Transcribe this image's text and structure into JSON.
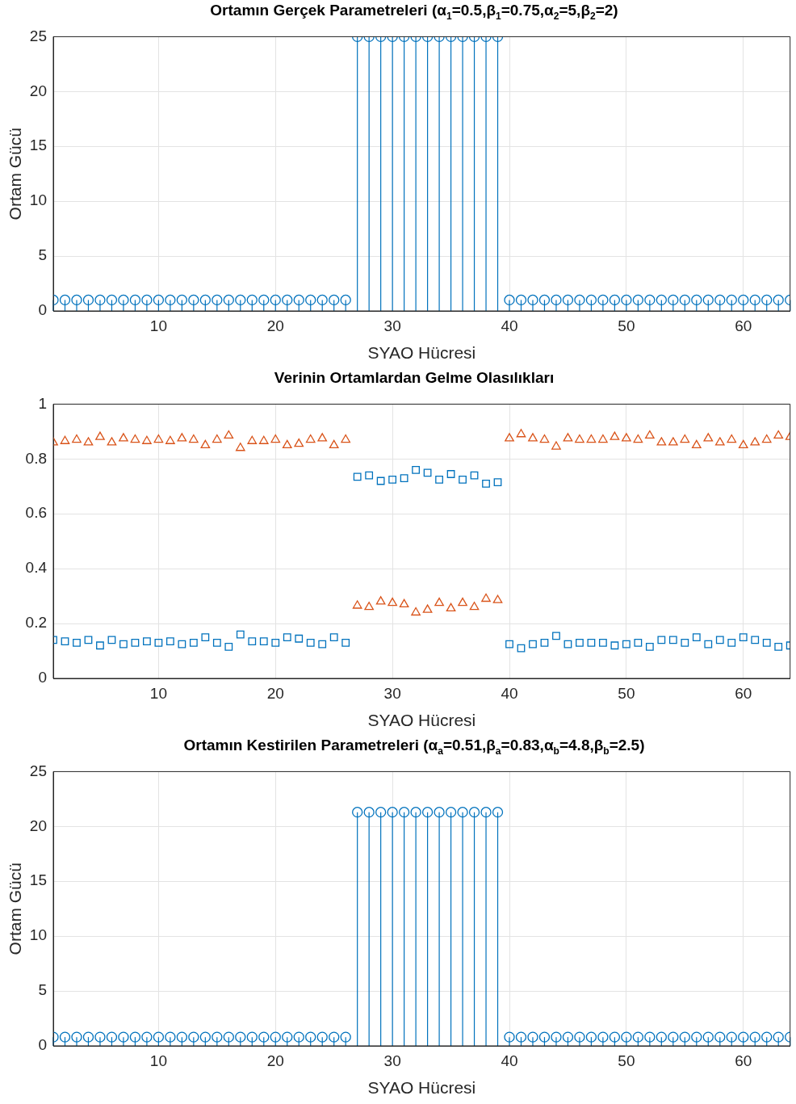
{
  "chart_data": [
    {
      "type": "lollipop",
      "title": "Ortamın Gerçek Parametreleri (α$_{1}$=0.5,β$_{1}$=0.75,α$_{2}$=5,β$_{2}$=2)",
      "xlabel": "SYAO Hücresi",
      "ylabel": "Ortam Gücü",
      "x": [
        1,
        2,
        3,
        4,
        5,
        6,
        7,
        8,
        9,
        10,
        11,
        12,
        13,
        14,
        15,
        16,
        17,
        18,
        19,
        20,
        21,
        22,
        23,
        24,
        25,
        26,
        27,
        28,
        29,
        30,
        31,
        32,
        33,
        34,
        35,
        36,
        37,
        38,
        39,
        40,
        41,
        42,
        43,
        44,
        45,
        46,
        47,
        48,
        49,
        50,
        51,
        52,
        53,
        54,
        55,
        56,
        57,
        58,
        59,
        60,
        61,
        62,
        63,
        64
      ],
      "series": [
        {
          "color": "#0072bd",
          "values": [
            1,
            1,
            1,
            1,
            1,
            1,
            1,
            1,
            1,
            1,
            1,
            1,
            1,
            1,
            1,
            1,
            1,
            1,
            1,
            1,
            1,
            1,
            1,
            1,
            1,
            1,
            25,
            25,
            25,
            25,
            25,
            25,
            25,
            25,
            25,
            25,
            25,
            25,
            25,
            1,
            1,
            1,
            1,
            1,
            1,
            1,
            1,
            1,
            1,
            1,
            1,
            1,
            1,
            1,
            1,
            1,
            1,
            1,
            1,
            1,
            1,
            1,
            1,
            1
          ]
        }
      ],
      "marker": "circle",
      "xlim": [
        1,
        64
      ],
      "xticks": [
        10,
        20,
        30,
        40,
        50,
        60
      ],
      "ylim": [
        0,
        25
      ],
      "yticks": [
        0,
        5,
        10,
        15,
        20,
        25
      ],
      "grid": true,
      "legend": false
    },
    {
      "type": "scatter",
      "title": "Verinin Ortamlardan Gelme Olasılıkları",
      "xlabel": "SYAO Hücresi",
      "x": [
        1,
        2,
        3,
        4,
        5,
        6,
        7,
        8,
        9,
        10,
        11,
        12,
        13,
        14,
        15,
        16,
        17,
        18,
        19,
        20,
        21,
        22,
        23,
        24,
        25,
        26,
        27,
        28,
        29,
        30,
        31,
        32,
        33,
        34,
        35,
        36,
        37,
        38,
        39,
        40,
        41,
        42,
        43,
        44,
        45,
        46,
        47,
        48,
        49,
        50,
        51,
        52,
        53,
        54,
        55,
        56,
        57,
        58,
        59,
        60,
        61,
        62,
        63,
        64
      ],
      "series": [
        {
          "color": "#0072bd",
          "marker": "square",
          "values": [
            0.14,
            0.135,
            0.13,
            0.14,
            0.12,
            0.14,
            0.125,
            0.13,
            0.135,
            0.13,
            0.135,
            0.125,
            0.13,
            0.15,
            0.13,
            0.115,
            0.16,
            0.135,
            0.135,
            0.13,
            0.15,
            0.145,
            0.13,
            0.125,
            0.15,
            0.13,
            0.735,
            0.74,
            0.72,
            0.725,
            0.73,
            0.76,
            0.75,
            0.725,
            0.745,
            0.725,
            0.74,
            0.71,
            0.715,
            0.125,
            0.11,
            0.125,
            0.13,
            0.155,
            0.125,
            0.13,
            0.13,
            0.13,
            0.12,
            0.125,
            0.13,
            0.115,
            0.14,
            0.14,
            0.13,
            0.15,
            0.125,
            0.14,
            0.13,
            0.15,
            0.14,
            0.13,
            0.115,
            0.12
          ]
        },
        {
          "color": "#d95319",
          "marker": "triangle",
          "values": [
            0.86,
            0.865,
            0.87,
            0.86,
            0.88,
            0.86,
            0.875,
            0.87,
            0.865,
            0.87,
            0.865,
            0.875,
            0.87,
            0.85,
            0.87,
            0.885,
            0.84,
            0.865,
            0.865,
            0.87,
            0.85,
            0.855,
            0.87,
            0.875,
            0.85,
            0.87,
            0.265,
            0.26,
            0.28,
            0.275,
            0.27,
            0.24,
            0.25,
            0.275,
            0.255,
            0.275,
            0.26,
            0.29,
            0.285,
            0.875,
            0.89,
            0.875,
            0.87,
            0.845,
            0.875,
            0.87,
            0.87,
            0.87,
            0.88,
            0.875,
            0.87,
            0.885,
            0.86,
            0.86,
            0.87,
            0.85,
            0.875,
            0.86,
            0.87,
            0.85,
            0.86,
            0.87,
            0.885,
            0.88
          ]
        }
      ],
      "xlim": [
        1,
        64
      ],
      "xticks": [
        10,
        20,
        30,
        40,
        50,
        60
      ],
      "ylim": [
        0,
        1
      ],
      "yticks": [
        0,
        0.2,
        0.4,
        0.6,
        0.8,
        1
      ],
      "grid": true,
      "legend": false
    },
    {
      "type": "lollipop",
      "title": "Ortamın Kestirilen Parametreleri (α$_{a}$=0.51,β$_{a}$=0.83,α$_{b}$=4.8,β$_{b}$=2.5)",
      "xlabel": "SYAO Hücresi",
      "ylabel": "Ortam Gücü",
      "x": [
        1,
        2,
        3,
        4,
        5,
        6,
        7,
        8,
        9,
        10,
        11,
        12,
        13,
        14,
        15,
        16,
        17,
        18,
        19,
        20,
        21,
        22,
        23,
        24,
        25,
        26,
        27,
        28,
        29,
        30,
        31,
        32,
        33,
        34,
        35,
        36,
        37,
        38,
        39,
        40,
        41,
        42,
        43,
        44,
        45,
        46,
        47,
        48,
        49,
        50,
        51,
        52,
        53,
        54,
        55,
        56,
        57,
        58,
        59,
        60,
        61,
        62,
        63,
        64
      ],
      "series": [
        {
          "color": "#0072bd",
          "values": [
            0.8,
            0.8,
            0.8,
            0.8,
            0.8,
            0.8,
            0.8,
            0.8,
            0.8,
            0.8,
            0.8,
            0.8,
            0.8,
            0.8,
            0.8,
            0.8,
            0.8,
            0.8,
            0.8,
            0.8,
            0.8,
            0.8,
            0.8,
            0.8,
            0.8,
            0.8,
            21.3,
            21.3,
            21.3,
            21.3,
            21.3,
            21.3,
            21.3,
            21.3,
            21.3,
            21.3,
            21.3,
            21.3,
            21.3,
            0.8,
            0.8,
            0.8,
            0.8,
            0.8,
            0.8,
            0.8,
            0.8,
            0.8,
            0.8,
            0.8,
            0.8,
            0.8,
            0.8,
            0.8,
            0.8,
            0.8,
            0.8,
            0.8,
            0.8,
            0.8,
            0.8,
            0.8,
            0.8,
            0.8
          ]
        }
      ],
      "marker": "circle",
      "xlim": [
        1,
        64
      ],
      "xticks": [
        10,
        20,
        30,
        40,
        50,
        60
      ],
      "ylim": [
        0,
        25
      ],
      "yticks": [
        0,
        5,
        10,
        15,
        20,
        25
      ],
      "grid": true,
      "legend": false
    }
  ]
}
